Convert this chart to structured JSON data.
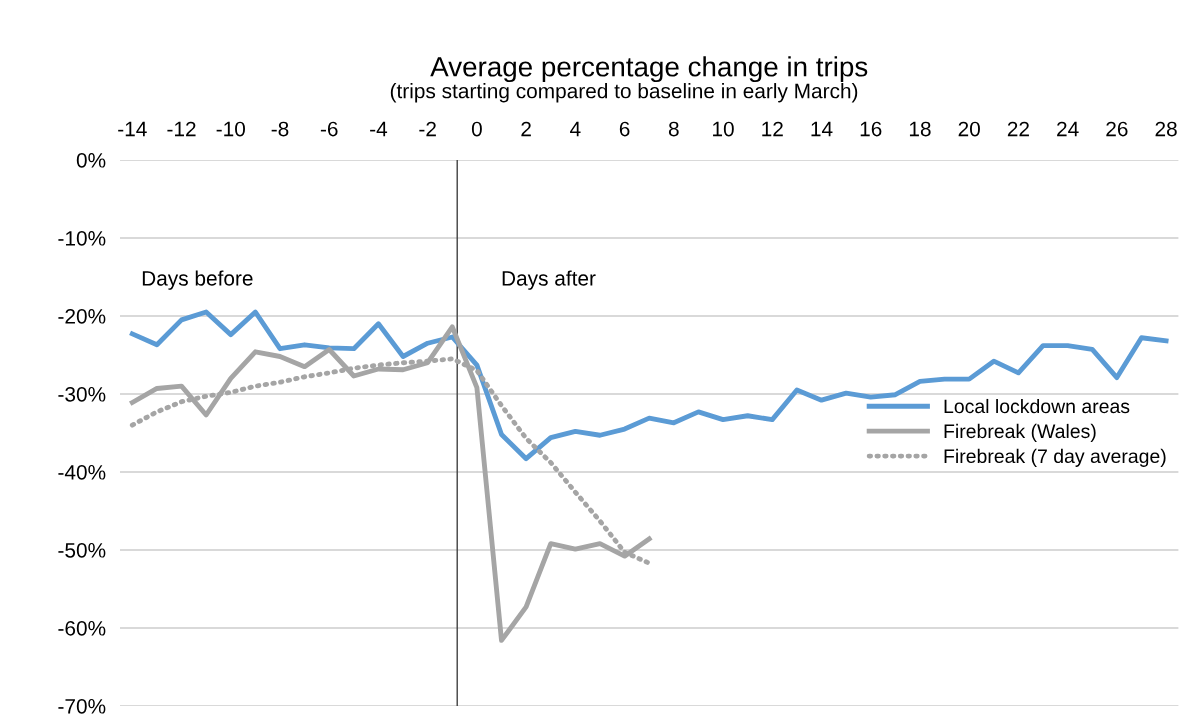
{
  "chart_data": {
    "type": "line",
    "title": "Average percentage change in trips",
    "subtitle": "(trips starting compared to baseline in early March)",
    "x": [
      -14,
      -13,
      -12,
      -11,
      -10,
      -9,
      -8,
      -7,
      -6,
      -5,
      -4,
      -3,
      -2,
      -1,
      0,
      1,
      2,
      3,
      4,
      5,
      6,
      7,
      8,
      9,
      10,
      11,
      12,
      13,
      14,
      15,
      16,
      17,
      18,
      19,
      20,
      21,
      22,
      23,
      24,
      25,
      26,
      27,
      28
    ],
    "series": [
      {
        "name": "Local lockdown areas",
        "color": "#5b9bd5",
        "line_style": "solid",
        "values": [
          -22.3,
          -23.7,
          -20.5,
          -19.5,
          -22.4,
          -19.5,
          -24.2,
          -23.7,
          -24.1,
          -24.2,
          -21.0,
          -25.2,
          -23.5,
          -22.7,
          -26.3,
          -35.2,
          -38.3,
          -35.6,
          -34.8,
          -35.3,
          -34.5,
          -33.1,
          -33.7,
          -32.3,
          -33.3,
          -32.8,
          -33.3,
          -29.5,
          -30.8,
          -29.9,
          -30.4,
          -30.1,
          -28.4,
          -28.1,
          -28.1,
          -25.8,
          -27.3,
          -23.8,
          -23.8,
          -24.3,
          -27.9,
          -22.8,
          -23.2
        ]
      },
      {
        "name": "Firebreak (Wales)",
        "color": "#a5a5a5",
        "line_style": "solid",
        "values": [
          -31.1,
          -29.3,
          -29.0,
          -32.7,
          -28.0,
          -24.6,
          -25.2,
          -26.5,
          -24.3,
          -27.7,
          -26.8,
          -26.9,
          -26.0,
          -21.4,
          -29.2,
          -61.6,
          -57.3,
          -49.2,
          -49.9,
          -49.2,
          -50.8,
          -48.6,
          null,
          null,
          null,
          null,
          null,
          null,
          null,
          null,
          null,
          null,
          null,
          null,
          null,
          null,
          null,
          null,
          null,
          null,
          null,
          null,
          null
        ]
      },
      {
        "name": "Firebreak (7 day average)",
        "color": "#a5a5a5",
        "line_style": "dotted",
        "values": [
          -34.0,
          -32.3,
          -31.0,
          -30.3,
          -29.8,
          -29.0,
          -28.5,
          -27.8,
          -27.3,
          -26.7,
          -26.3,
          -26.0,
          -25.8,
          -25.5,
          -27.0,
          -31.5,
          -35.7,
          -38.8,
          -42.6,
          -46.3,
          -50.3,
          -51.7,
          null,
          null,
          null,
          null,
          null,
          null,
          null,
          null,
          null,
          null,
          null,
          null,
          null,
          null,
          null,
          null,
          null,
          null,
          null,
          null,
          null
        ]
      }
    ],
    "xlim": [
      -14.5,
      28.5
    ],
    "xticks": [
      -14,
      -12,
      -10,
      -8,
      -6,
      -4,
      -2,
      0,
      2,
      4,
      6,
      8,
      10,
      12,
      14,
      16,
      18,
      20,
      22,
      24,
      26,
      28
    ],
    "ylim": [
      -70,
      0
    ],
    "yticks": [
      {
        "value": 0,
        "label": "0%"
      },
      {
        "value": -10,
        "label": "-10%"
      },
      {
        "value": -20,
        "label": "-20%"
      },
      {
        "value": -30,
        "label": "-30%"
      },
      {
        "value": -40,
        "label": "-40%"
      },
      {
        "value": -50,
        "label": "-50%"
      },
      {
        "value": -60,
        "label": "-60%"
      },
      {
        "value": -70,
        "label": "-70%"
      }
    ],
    "ref_lines": [
      {
        "axis": "x",
        "value": -0.8,
        "color": "#404040"
      }
    ],
    "annotations": [
      "Days before",
      "Days after"
    ],
    "grid": "y",
    "legend": "right",
    "marker": "none"
  }
}
